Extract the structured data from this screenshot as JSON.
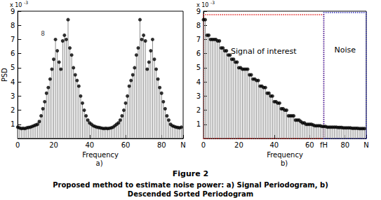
{
  "chart_data": [
    {
      "type": "stem",
      "title": "a)",
      "x_label": "Frequency",
      "y_label": "PSD",
      "color": "#000000",
      "x": [
        0,
        1,
        2,
        3,
        4,
        5,
        6,
        7,
        8,
        9,
        10,
        11,
        12,
        13,
        14,
        15,
        16,
        17,
        18,
        19,
        20,
        21,
        22,
        23,
        24,
        25,
        26,
        27,
        28,
        29,
        30,
        31,
        32,
        33,
        34,
        35,
        36,
        37,
        38,
        39,
        40,
        41,
        42,
        43,
        44,
        45,
        46,
        47,
        48,
        49,
        50,
        51,
        52,
        53,
        54,
        55,
        56,
        57,
        58,
        59,
        60,
        61,
        62,
        63,
        64,
        65,
        66,
        67,
        68,
        69,
        70,
        71,
        72,
        73,
        74,
        75,
        76,
        77,
        78,
        79,
        80,
        81,
        82,
        83,
        84,
        85,
        86,
        87,
        88,
        89,
        90,
        91
      ],
      "values": [
        0.8,
        0.75,
        0.7,
        0.72,
        0.7,
        0.75,
        0.78,
        0.8,
        0.85,
        0.9,
        0.95,
        1.0,
        1.2,
        1.6,
        2.1,
        2.6,
        3.2,
        3.6,
        4.2,
        4.9,
        5.6,
        7.0,
        6.2,
        5.4,
        4.9,
        6.9,
        7.3,
        7.0,
        8.4,
        6.4,
        5.9,
        5.0,
        4.5,
        4.1,
        3.7,
        3.0,
        2.5,
        2.0,
        1.6,
        1.3,
        1.1,
        1.0,
        0.9,
        0.85,
        0.8,
        0.78,
        0.75,
        0.72,
        0.7,
        0.72,
        0.7,
        0.72,
        0.75,
        0.8,
        0.9,
        1.0,
        1.1,
        1.3,
        1.6,
        2.0,
        2.5,
        3.0,
        3.7,
        4.1,
        4.5,
        5.0,
        5.9,
        6.4,
        8.4,
        7.0,
        7.3,
        6.9,
        4.9,
        5.4,
        6.2,
        7.0,
        5.6,
        4.9,
        4.2,
        3.6,
        3.2,
        2.6,
        2.1,
        1.6,
        1.3,
        1.0,
        0.9,
        0.85,
        0.8,
        0.78,
        0.75,
        0.8
      ],
      "xlim": [
        0,
        92
      ],
      "ylim": [
        0,
        9
      ],
      "xticks": [
        0,
        20,
        40,
        60,
        80,
        {
          "value": 92,
          "label": "N"
        }
      ],
      "yticks": [
        1,
        2,
        3,
        4,
        5,
        6,
        7,
        8,
        9
      ],
      "y_multiplier": {
        "base": "x 10",
        "exponent": "-3"
      },
      "annotations": [
        {
          "text": "8",
          "x": 14,
          "y": 7.4
        }
      ]
    },
    {
      "type": "stem",
      "title": "b)",
      "x_label": "Frequency",
      "color": "#000000",
      "x": [
        0,
        1,
        2,
        3,
        4,
        5,
        6,
        7,
        8,
        9,
        10,
        11,
        12,
        13,
        14,
        15,
        16,
        17,
        18,
        19,
        20,
        21,
        22,
        23,
        24,
        25,
        26,
        27,
        28,
        29,
        30,
        31,
        32,
        33,
        34,
        35,
        36,
        37,
        38,
        39,
        40,
        41,
        42,
        43,
        44,
        45,
        46,
        47,
        48,
        49,
        50,
        51,
        52,
        53,
        54,
        55,
        56,
        57,
        58,
        59,
        60,
        61,
        62,
        63,
        64,
        65,
        66,
        67,
        68,
        69,
        70,
        71,
        72,
        73,
        74,
        75,
        76,
        77,
        78,
        79,
        80,
        81,
        82,
        83,
        84,
        85,
        86,
        87,
        88,
        89,
        90,
        91
      ],
      "values": [
        8.4,
        8.4,
        7.3,
        7.3,
        7.0,
        7.0,
        7.0,
        7.0,
        6.9,
        6.9,
        6.4,
        6.4,
        6.2,
        6.2,
        5.9,
        5.9,
        5.6,
        5.6,
        5.4,
        5.4,
        5.0,
        5.0,
        4.9,
        4.9,
        4.9,
        4.9,
        4.5,
        4.5,
        4.2,
        4.2,
        4.1,
        4.1,
        3.7,
        3.7,
        3.6,
        3.6,
        3.2,
        3.2,
        3.0,
        3.0,
        2.6,
        2.6,
        2.5,
        2.5,
        2.1,
        2.1,
        2.0,
        2.0,
        1.6,
        1.6,
        1.6,
        1.6,
        1.3,
        1.3,
        1.3,
        1.2,
        1.1,
        1.1,
        1.0,
        1.0,
        1.0,
        1.0,
        0.95,
        0.9,
        0.9,
        0.9,
        0.9,
        0.85,
        0.85,
        0.85,
        0.8,
        0.8,
        0.8,
        0.8,
        0.8,
        0.8,
        0.78,
        0.78,
        0.78,
        0.75,
        0.75,
        0.75,
        0.75,
        0.75,
        0.72,
        0.72,
        0.72,
        0.72,
        0.7,
        0.7,
        0.7,
        0.7
      ],
      "xlim": [
        0,
        92
      ],
      "ylim": [
        0,
        9
      ],
      "xticks": [
        0,
        20,
        40,
        60,
        {
          "value": 68,
          "label": "fH"
        },
        80,
        {
          "value": 92,
          "label": "N"
        }
      ],
      "yticks": [
        1,
        2,
        3,
        4,
        5,
        6,
        7,
        8,
        9
      ],
      "y_multiplier": {
        "base": "x 10",
        "exponent": "-3"
      },
      "regions": [
        {
          "label": "Signal of interest",
          "x": [
            0,
            68
          ],
          "y": [
            0,
            8.75
          ],
          "color": "#e02020"
        },
        {
          "label": "Noise",
          "x": [
            68,
            92
          ],
          "y": [
            0,
            8.9
          ],
          "color": "#3030c0"
        }
      ]
    }
  ],
  "caption": {
    "title": "Figure 2",
    "lines": [
      "Proposed method to estimate noise power: a) Signal Periodogram, b)",
      "Descended Sorted Periodogram"
    ]
  }
}
